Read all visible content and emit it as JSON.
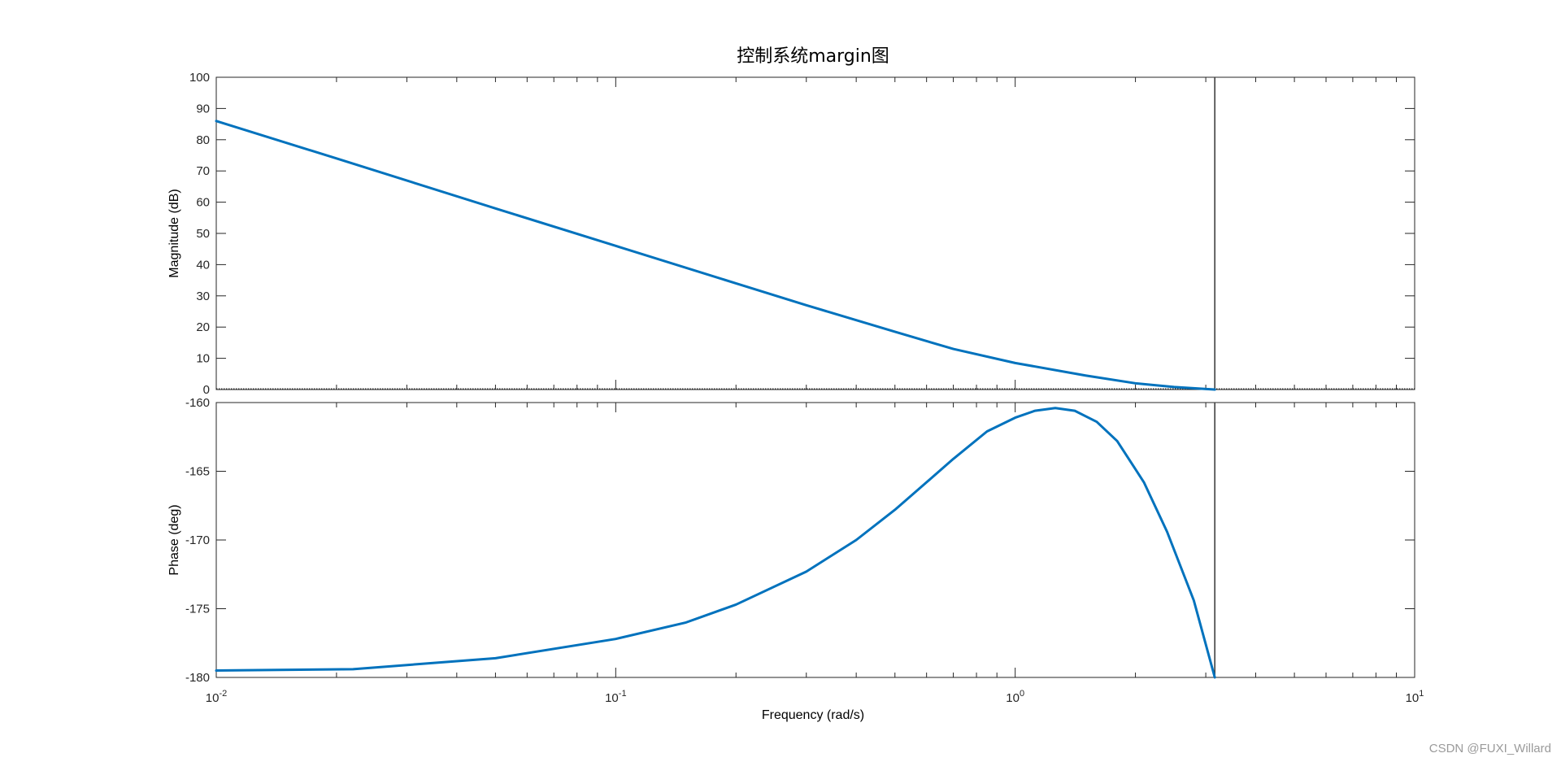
{
  "watermark": "CSDN @FUXI_Willard",
  "chart_data": {
    "type": "line",
    "title": "控制系统margin图",
    "xlabel": "Frequency  (rad/s)",
    "xscale": "log",
    "xlim": [
      0.01,
      10
    ],
    "x_ticks": [
      {
        "base": "10",
        "exp": "-2"
      },
      {
        "base": "10",
        "exp": "-1"
      },
      {
        "base": "10",
        "exp": "0"
      },
      {
        "base": "10",
        "exp": "1"
      }
    ],
    "crossover_frequency": 3.16,
    "colors": {
      "line": "#0072BD",
      "axes": "#262626",
      "marker": "#404040"
    },
    "panels": [
      {
        "name": "magnitude",
        "ylabel": "Magnitude (dB)",
        "ylim": [
          0,
          100
        ],
        "yticks": [
          0,
          10,
          20,
          30,
          40,
          50,
          60,
          70,
          80,
          90,
          100
        ],
        "reference_line": 0,
        "series": [
          {
            "x": [
              0.01,
              0.02,
              0.05,
              0.1,
              0.2,
              0.3,
              0.5,
              0.7,
              1.0,
              1.5,
              2.0,
              2.5,
              3.16
            ],
            "y": [
              86,
              74,
              58,
              46,
              34,
              27,
              18.5,
              13,
              8.5,
              4.5,
              2,
              0.8,
              0
            ]
          }
        ]
      },
      {
        "name": "phase",
        "ylabel": "Phase (deg)",
        "ylim": [
          -180,
          -160
        ],
        "yticks": [
          -180,
          -175,
          -170,
          -165,
          -160
        ],
        "series": [
          {
            "x": [
              0.01,
              0.022,
              0.05,
              0.1,
              0.15,
              0.2,
              0.3,
              0.4,
              0.5,
              0.6,
              0.7,
              0.85,
              1.0,
              1.12,
              1.26,
              1.41,
              1.6,
              1.8,
              2.1,
              2.4,
              2.8,
              3.16
            ],
            "y": [
              -179.5,
              -179.4,
              -178.6,
              -177.2,
              -176.0,
              -174.7,
              -172.3,
              -170.0,
              -167.8,
              -165.8,
              -164.1,
              -162.1,
              -161.1,
              -160.6,
              -160.4,
              -160.6,
              -161.4,
              -162.8,
              -165.8,
              -169.4,
              -174.4,
              -180.0
            ]
          }
        ]
      }
    ]
  }
}
